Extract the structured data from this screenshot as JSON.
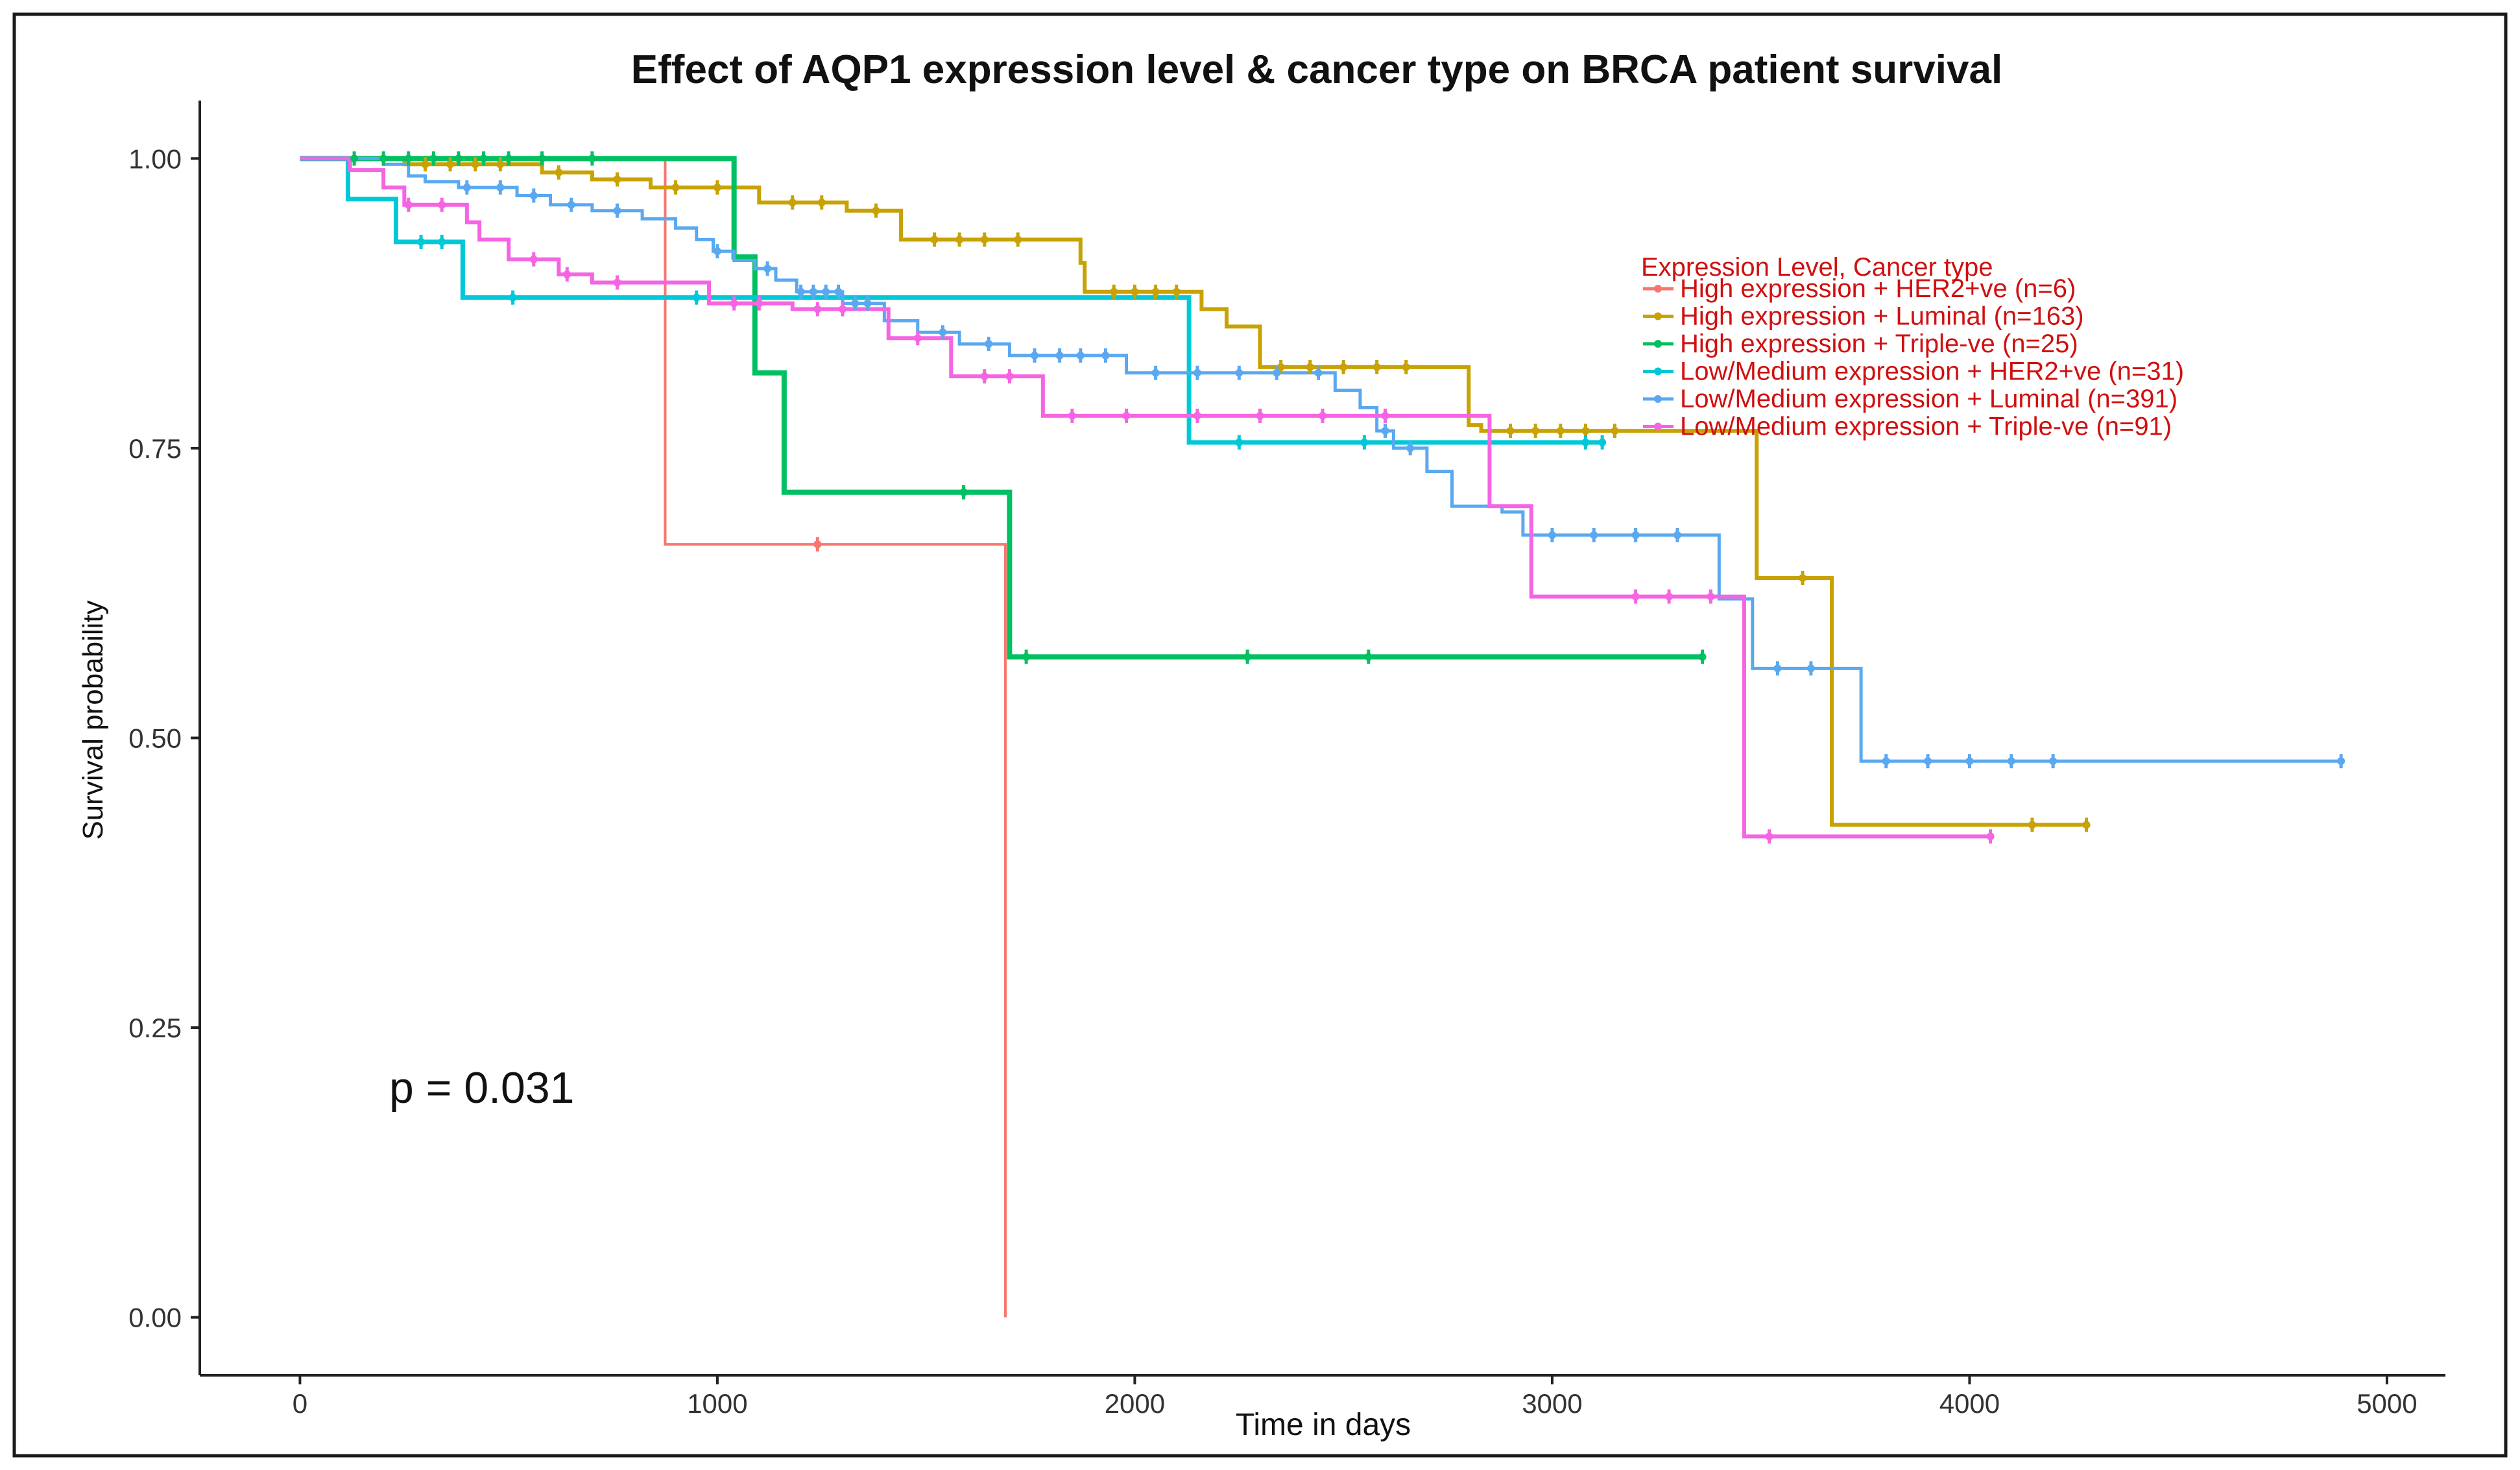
{
  "chart_data": {
    "type": "line",
    "subtype": "kaplan-meier",
    "title": "Effect of AQP1 expression level & cancer type on BRCA patient survival",
    "xlabel": "Time in days",
    "ylabel": "Survival probability",
    "xlim": [
      -240,
      5140
    ],
    "ylim": [
      -0.05,
      1.05
    ],
    "xticks": [
      0,
      1000,
      2000,
      3000,
      4000,
      5000
    ],
    "xtick_labels": [
      "0",
      "1000",
      "2000",
      "3000",
      "4000",
      "5000"
    ],
    "yticks": [
      0,
      0.25,
      0.5,
      0.75,
      1.0
    ],
    "ytick_labels": [
      "0.00",
      "0.25",
      "0.50",
      "0.75",
      "1.00"
    ],
    "legend_title": "Expression Level, Cancer type",
    "legend_position": "top-right",
    "annotation": "p = 0.031",
    "series": [
      {
        "name": "High expression + HER2+ve (n=6)",
        "color": "#F8766D",
        "steps": [
          [
            0,
            1.0
          ],
          [
            875,
            0.667
          ],
          [
            1690,
            0.0
          ]
        ],
        "censored": [
          [
            1240,
            0.667
          ]
        ]
      },
      {
        "name": "High expression + Luminal (n=163)",
        "color": "#C8A200",
        "steps": [
          [
            0,
            1.0
          ],
          [
            250,
            0.995
          ],
          [
            580,
            0.988
          ],
          [
            700,
            0.982
          ],
          [
            840,
            0.975
          ],
          [
            1100,
            0.962
          ],
          [
            1310,
            0.955
          ],
          [
            1440,
            0.93
          ],
          [
            1870,
            0.91
          ],
          [
            1880,
            0.885
          ],
          [
            2160,
            0.87
          ],
          [
            2220,
            0.855
          ],
          [
            2300,
            0.82
          ],
          [
            2800,
            0.77
          ],
          [
            2830,
            0.765
          ],
          [
            3490,
            0.638
          ],
          [
            3670,
            0.425
          ]
        ],
        "extend_to": 4280,
        "censored": [
          [
            300,
            0.995
          ],
          [
            360,
            0.995
          ],
          [
            420,
            0.995
          ],
          [
            480,
            0.995
          ],
          [
            620,
            0.988
          ],
          [
            760,
            0.982
          ],
          [
            900,
            0.975
          ],
          [
            1000,
            0.975
          ],
          [
            1180,
            0.962
          ],
          [
            1250,
            0.962
          ],
          [
            1380,
            0.955
          ],
          [
            1520,
            0.93
          ],
          [
            1580,
            0.93
          ],
          [
            1640,
            0.93
          ],
          [
            1720,
            0.93
          ],
          [
            1950,
            0.885
          ],
          [
            2000,
            0.885
          ],
          [
            2050,
            0.885
          ],
          [
            2100,
            0.885
          ],
          [
            2350,
            0.82
          ],
          [
            2420,
            0.82
          ],
          [
            2500,
            0.82
          ],
          [
            2580,
            0.82
          ],
          [
            2650,
            0.82
          ],
          [
            2900,
            0.765
          ],
          [
            2960,
            0.765
          ],
          [
            3020,
            0.765
          ],
          [
            3080,
            0.765
          ],
          [
            3150,
            0.765
          ],
          [
            3600,
            0.638
          ],
          [
            4150,
            0.425
          ],
          [
            4280,
            0.425
          ]
        ]
      },
      {
        "name": "High expression + Triple-ve (n=25)",
        "color": "#00C062",
        "steps": [
          [
            0,
            1.0
          ],
          [
            1040,
            0.915
          ],
          [
            1090,
            0.88
          ],
          [
            1090,
            0.815
          ],
          [
            1160,
            0.712
          ],
          [
            1700,
            0.57
          ]
        ],
        "extend_to": 3360,
        "censored": [
          [
            130,
            1.0
          ],
          [
            200,
            1.0
          ],
          [
            260,
            1.0
          ],
          [
            320,
            1.0
          ],
          [
            380,
            1.0
          ],
          [
            440,
            1.0
          ],
          [
            500,
            1.0
          ],
          [
            580,
            1.0
          ],
          [
            700,
            1.0
          ],
          [
            1590,
            0.712
          ],
          [
            1740,
            0.57
          ],
          [
            2270,
            0.57
          ],
          [
            2560,
            0.57
          ],
          [
            3360,
            0.57
          ]
        ]
      },
      {
        "name": "Low/Medium expression + HER2+ve (n=31)",
        "color": "#00C8D8",
        "steps": [
          [
            0,
            1.0
          ],
          [
            115,
            0.965
          ],
          [
            230,
            0.928
          ],
          [
            390,
            0.88
          ],
          [
            2130,
            0.755
          ]
        ],
        "extend_to": 3120,
        "censored": [
          [
            290,
            0.928
          ],
          [
            340,
            0.928
          ],
          [
            510,
            0.88
          ],
          [
            950,
            0.88
          ],
          [
            2250,
            0.755
          ],
          [
            2550,
            0.755
          ],
          [
            3080,
            0.755
          ],
          [
            3120,
            0.755
          ]
        ]
      },
      {
        "name": "Low/Medium expression + Luminal (n=391)",
        "color": "#5AA8F0",
        "steps": [
          [
            0,
            1.0
          ],
          [
            200,
            0.995
          ],
          [
            260,
            0.985
          ],
          [
            300,
            0.98
          ],
          [
            380,
            0.975
          ],
          [
            520,
            0.968
          ],
          [
            600,
            0.96
          ],
          [
            700,
            0.955
          ],
          [
            820,
            0.948
          ],
          [
            900,
            0.94
          ],
          [
            950,
            0.93
          ],
          [
            990,
            0.92
          ],
          [
            1040,
            0.912
          ],
          [
            1090,
            0.905
          ],
          [
            1140,
            0.895
          ],
          [
            1190,
            0.885
          ],
          [
            1300,
            0.875
          ],
          [
            1400,
            0.86
          ],
          [
            1480,
            0.85
          ],
          [
            1580,
            0.84
          ],
          [
            1700,
            0.83
          ],
          [
            1980,
            0.815
          ],
          [
            2480,
            0.8
          ],
          [
            2540,
            0.785
          ],
          [
            2580,
            0.765
          ],
          [
            2620,
            0.75
          ],
          [
            2700,
            0.73
          ],
          [
            2760,
            0.7
          ],
          [
            2880,
            0.695
          ],
          [
            2930,
            0.675
          ],
          [
            3400,
            0.62
          ],
          [
            3480,
            0.56
          ],
          [
            3740,
            0.48
          ]
        ],
        "extend_to": 4890,
        "censored": [
          [
            400,
            0.975
          ],
          [
            480,
            0.975
          ],
          [
            560,
            0.968
          ],
          [
            650,
            0.96
          ],
          [
            760,
            0.955
          ],
          [
            1000,
            0.92
          ],
          [
            1120,
            0.905
          ],
          [
            1200,
            0.885
          ],
          [
            1230,
            0.885
          ],
          [
            1260,
            0.885
          ],
          [
            1290,
            0.885
          ],
          [
            1330,
            0.875
          ],
          [
            1360,
            0.875
          ],
          [
            1540,
            0.85
          ],
          [
            1650,
            0.84
          ],
          [
            1760,
            0.83
          ],
          [
            1820,
            0.83
          ],
          [
            1870,
            0.83
          ],
          [
            1930,
            0.83
          ],
          [
            2050,
            0.815
          ],
          [
            2150,
            0.815
          ],
          [
            2250,
            0.815
          ],
          [
            2340,
            0.815
          ],
          [
            2440,
            0.815
          ],
          [
            2600,
            0.765
          ],
          [
            2660,
            0.75
          ],
          [
            3000,
            0.675
          ],
          [
            3100,
            0.675
          ],
          [
            3200,
            0.675
          ],
          [
            3300,
            0.675
          ],
          [
            3540,
            0.56
          ],
          [
            3620,
            0.56
          ],
          [
            3800,
            0.48
          ],
          [
            3900,
            0.48
          ],
          [
            4000,
            0.48
          ],
          [
            4100,
            0.48
          ],
          [
            4200,
            0.48
          ],
          [
            4890,
            0.48
          ]
        ]
      },
      {
        "name": "Low/Medium expression + Triple-ve (n=91)",
        "color": "#F564E3",
        "steps": [
          [
            0,
            1.0
          ],
          [
            120,
            0.99
          ],
          [
            200,
            0.975
          ],
          [
            250,
            0.96
          ],
          [
            400,
            0.945
          ],
          [
            430,
            0.93
          ],
          [
            500,
            0.913
          ],
          [
            620,
            0.9
          ],
          [
            700,
            0.893
          ],
          [
            980,
            0.875
          ],
          [
            1180,
            0.87
          ],
          [
            1410,
            0.845
          ],
          [
            1560,
            0.812
          ],
          [
            1780,
            0.778
          ],
          [
            2850,
            0.7
          ],
          [
            2950,
            0.622
          ],
          [
            3460,
            0.415
          ]
        ],
        "extend_to": 4050,
        "censored": [
          [
            260,
            0.96
          ],
          [
            340,
            0.96
          ],
          [
            560,
            0.913
          ],
          [
            640,
            0.9
          ],
          [
            760,
            0.893
          ],
          [
            1040,
            0.875
          ],
          [
            1100,
            0.875
          ],
          [
            1240,
            0.87
          ],
          [
            1300,
            0.87
          ],
          [
            1480,
            0.845
          ],
          [
            1640,
            0.812
          ],
          [
            1700,
            0.812
          ],
          [
            1850,
            0.778
          ],
          [
            1980,
            0.778
          ],
          [
            2150,
            0.778
          ],
          [
            2300,
            0.778
          ],
          [
            2450,
            0.778
          ],
          [
            2600,
            0.778
          ],
          [
            3200,
            0.622
          ],
          [
            3280,
            0.622
          ],
          [
            3380,
            0.622
          ],
          [
            3520,
            0.415
          ],
          [
            4050,
            0.415
          ]
        ]
      }
    ]
  }
}
